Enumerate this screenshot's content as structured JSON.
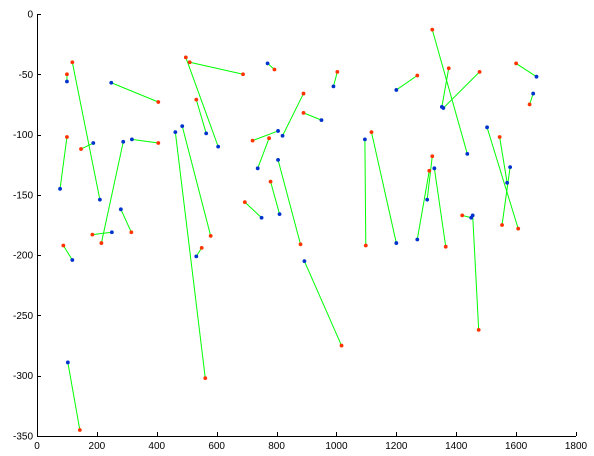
{
  "chart_data": {
    "type": "scatter",
    "title": "",
    "xlabel": "",
    "ylabel": "",
    "xlim": [
      0,
      1800
    ],
    "ylim": [
      -350,
      0
    ],
    "x_ticks": [
      0,
      200,
      400,
      600,
      800,
      1000,
      1200,
      1400,
      1600,
      1800
    ],
    "y_ticks": [
      0,
      -50,
      -100,
      -150,
      -200,
      -250,
      -300,
      -350
    ],
    "x_tick_labels": [
      "0",
      "200",
      "400",
      "600",
      "800",
      "1000",
      "1200",
      "1400",
      "1600",
      "1800"
    ],
    "y_tick_labels": [
      "0",
      "-50",
      "-100",
      "-150",
      "-200",
      "-250",
      "-300",
      "-350"
    ],
    "grid": false,
    "colors": {
      "segment": "#00ff00",
      "endpoint_red": "#ff3300",
      "endpoint_blue": "#0033cc",
      "axis": "#000000"
    },
    "segments": [
      {
        "a": [
          77,
          -145
        ],
        "a_color": "blue",
        "b": [
          100,
          -102
        ],
        "b_color": "red"
      },
      {
        "a": [
          100,
          -56
        ],
        "a_color": "blue",
        "b": [
          100,
          -50
        ],
        "b_color": "red"
      },
      {
        "a": [
          118,
          -40
        ],
        "a_color": "red",
        "b": [
          210,
          -154
        ],
        "b_color": "blue"
      },
      {
        "a": [
          147,
          -112
        ],
        "a_color": "red",
        "b": [
          188,
          -107
        ],
        "b_color": "blue"
      },
      {
        "a": [
          88,
          -192
        ],
        "a_color": "red",
        "b": [
          118,
          -204
        ],
        "b_color": "blue"
      },
      {
        "a": [
          103,
          -289
        ],
        "a_color": "blue",
        "b": [
          143,
          -345
        ],
        "b_color": "red"
      },
      {
        "a": [
          185,
          -183
        ],
        "a_color": "red",
        "b": [
          250,
          -181
        ],
        "b_color": "blue"
      },
      {
        "a": [
          215,
          -190
        ],
        "a_color": "red",
        "b": [
          288,
          -106
        ],
        "b_color": "blue"
      },
      {
        "a": [
          248,
          -57
        ],
        "a_color": "blue",
        "b": [
          405,
          -73
        ],
        "b_color": "red"
      },
      {
        "a": [
          317,
          -104
        ],
        "a_color": "blue",
        "b": [
          405,
          -107
        ],
        "b_color": "red"
      },
      {
        "a": [
          280,
          -162
        ],
        "a_color": "blue",
        "b": [
          315,
          -181
        ],
        "b_color": "red"
      },
      {
        "a": [
          462,
          -98
        ],
        "a_color": "blue",
        "b": [
          562,
          -302
        ],
        "b_color": "red"
      },
      {
        "a": [
          485,
          -93
        ],
        "a_color": "blue",
        "b": [
          580,
          -184
        ],
        "b_color": "red"
      },
      {
        "a": [
          497,
          -36
        ],
        "a_color": "red",
        "b": [
          605,
          -110
        ],
        "b_color": "blue"
      },
      {
        "a": [
          510,
          -40
        ],
        "a_color": "red",
        "b": [
          688,
          -50
        ],
        "b_color": "red"
      },
      {
        "a": [
          532,
          -71
        ],
        "a_color": "red",
        "b": [
          565,
          -99
        ],
        "b_color": "blue"
      },
      {
        "a": [
          532,
          -201
        ],
        "a_color": "blue",
        "b": [
          550,
          -194
        ],
        "b_color": "red"
      },
      {
        "a": [
          694,
          -156
        ],
        "a_color": "red",
        "b": [
          750,
          -169
        ],
        "b_color": "blue"
      },
      {
        "a": [
          720,
          -105
        ],
        "a_color": "red",
        "b": [
          805,
          -97
        ],
        "b_color": "blue"
      },
      {
        "a": [
          737,
          -128
        ],
        "a_color": "blue",
        "b": [
          775,
          -103
        ],
        "b_color": "red"
      },
      {
        "a": [
          770,
          -41
        ],
        "a_color": "blue",
        "b": [
          793,
          -46
        ],
        "b_color": "red"
      },
      {
        "a": [
          780,
          -139
        ],
        "a_color": "red",
        "b": [
          810,
          -166
        ],
        "b_color": "blue"
      },
      {
        "a": [
          805,
          -121
        ],
        "a_color": "blue",
        "b": [
          880,
          -191
        ],
        "b_color": "red"
      },
      {
        "a": [
          820,
          -101
        ],
        "a_color": "blue",
        "b": [
          890,
          -66
        ],
        "b_color": "red"
      },
      {
        "a": [
          890,
          -82
        ],
        "a_color": "red",
        "b": [
          950,
          -88
        ],
        "b_color": "blue"
      },
      {
        "a": [
          990,
          -60
        ],
        "a_color": "blue",
        "b": [
          1003,
          -48
        ],
        "b_color": "red"
      },
      {
        "a": [
          893,
          -205
        ],
        "a_color": "blue",
        "b": [
          1017,
          -275
        ],
        "b_color": "red"
      },
      {
        "a": [
          1095,
          -104
        ],
        "a_color": "blue",
        "b": [
          1098,
          -192
        ],
        "b_color": "red"
      },
      {
        "a": [
          1117,
          -98
        ],
        "a_color": "red",
        "b": [
          1200,
          -190
        ],
        "b_color": "blue"
      },
      {
        "a": [
          1200,
          -63
        ],
        "a_color": "blue",
        "b": [
          1270,
          -51
        ],
        "b_color": "red"
      },
      {
        "a": [
          1270,
          -187
        ],
        "a_color": "blue",
        "b": [
          1310,
          -130
        ],
        "b_color": "red"
      },
      {
        "a": [
          1303,
          -154
        ],
        "a_color": "blue",
        "b": [
          1320,
          -118
        ],
        "b_color": "red"
      },
      {
        "a": [
          1327,
          -128
        ],
        "a_color": "blue",
        "b": [
          1365,
          -193
        ],
        "b_color": "red"
      },
      {
        "a": [
          1320,
          -13
        ],
        "a_color": "red",
        "b": [
          1437,
          -116
        ],
        "b_color": "blue"
      },
      {
        "a": [
          1352,
          -77
        ],
        "a_color": "blue",
        "b": [
          1375,
          -45
        ],
        "b_color": "red"
      },
      {
        "a": [
          1357,
          -78
        ],
        "a_color": "blue",
        "b": [
          1478,
          -48
        ],
        "b_color": "red"
      },
      {
        "a": [
          1420,
          -167
        ],
        "a_color": "red",
        "b": [
          1450,
          -169
        ],
        "b_color": "blue"
      },
      {
        "a": [
          1455,
          -167
        ],
        "a_color": "blue",
        "b": [
          1475,
          -262
        ],
        "b_color": "red"
      },
      {
        "a": [
          1503,
          -94
        ],
        "a_color": "blue",
        "b": [
          1607,
          -178
        ],
        "b_color": "red"
      },
      {
        "a": [
          1545,
          -102
        ],
        "a_color": "red",
        "b": [
          1570,
          -140
        ],
        "b_color": "blue"
      },
      {
        "a": [
          1553,
          -175
        ],
        "a_color": "red",
        "b": [
          1580,
          -127
        ],
        "b_color": "blue"
      },
      {
        "a": [
          1600,
          -41
        ],
        "a_color": "red",
        "b": [
          1668,
          -52
        ],
        "b_color": "blue"
      },
      {
        "a": [
          1645,
          -75
        ],
        "a_color": "red",
        "b": [
          1657,
          -66
        ],
        "b_color": "blue"
      }
    ]
  }
}
